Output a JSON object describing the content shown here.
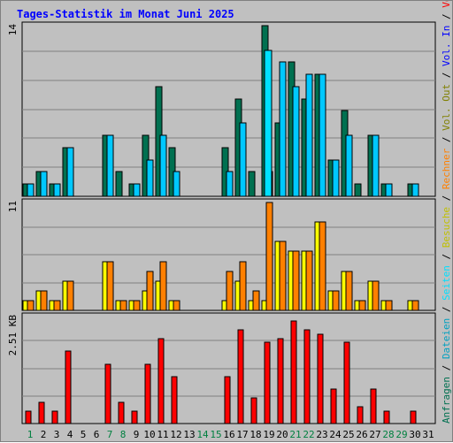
{
  "title": "Tages-Statistik im Monat Juni 2025",
  "chart_data": {
    "type": "bar",
    "days": [
      "1",
      "2",
      "3",
      "4",
      "5",
      "6",
      "7",
      "8",
      "9",
      "10",
      "11",
      "12",
      "13",
      "14",
      "15",
      "16",
      "17",
      "18",
      "19",
      "20",
      "21",
      "22",
      "23",
      "24",
      "25",
      "26",
      "27",
      "28",
      "29",
      "30",
      "31"
    ],
    "weekend_days": [
      "1",
      "7",
      "8",
      "14",
      "15",
      "21",
      "22",
      "28",
      "29"
    ],
    "panels": [
      {
        "id": "top",
        "ymax_label": "14",
        "ymax": 14,
        "series": [
          {
            "name": "Anfragen",
            "color": "#007050",
            "values": [
              1,
              2,
              1,
              4,
              0,
              0,
              5,
              2,
              1,
              5,
              9,
              4,
              0,
              0,
              0,
              4,
              8,
              2,
              14,
              6,
              11,
              8,
              10,
              3,
              7,
              1,
              5,
              1,
              0,
              1,
              0
            ]
          },
          {
            "name": "Dateien",
            "color": "#00c8ff",
            "values": [
              1,
              2,
              1,
              4,
              0,
              0,
              5,
              0,
              1,
              3,
              5,
              2,
              0,
              0,
              0,
              2,
              6,
              0,
              2,
              11,
              9,
              10,
              10,
              3,
              5,
              0,
              5,
              1,
              0,
              1,
              0
            ]
          },
          {
            "name": "Seiten",
            "color": "#00e0ff",
            "values": [
              0,
              0,
              0,
              0,
              0,
              0,
              0,
              0,
              0,
              0,
              0,
              0,
              0,
              0,
              0,
              0,
              0,
              0,
              12,
              0,
              0,
              0,
              0,
              0,
              0,
              0,
              0,
              0,
              0,
              0,
              0
            ]
          }
        ]
      },
      {
        "id": "middle",
        "ymax_label": "11",
        "ymax": 11,
        "series": [
          {
            "name": "Besuche",
            "color": "#ffff00",
            "values": [
              1,
              2,
              1,
              3,
              0,
              0,
              5,
              1,
              1,
              2,
              3,
              1,
              0,
              0,
              0,
              1,
              3,
              1,
              1,
              7,
              6,
              6,
              9,
              2,
              4,
              1,
              3,
              1,
              0,
              1,
              0
            ]
          },
          {
            "name": "Rechner",
            "color": "#ff8000",
            "values": [
              1,
              2,
              1,
              3,
              0,
              0,
              5,
              1,
              1,
              4,
              5,
              1,
              0,
              0,
              0,
              4,
              5,
              2,
              11,
              7,
              6,
              6,
              9,
              2,
              4,
              1,
              3,
              1,
              0,
              1,
              0
            ]
          }
        ]
      },
      {
        "id": "bottom",
        "ymax_label": "2.51 KB",
        "ymax": 2.51,
        "series": [
          {
            "name": "Volumen",
            "color": "#ff0000",
            "values": [
              0.3,
              0.5,
              0.3,
              1.7,
              0,
              0,
              1.4,
              0.5,
              0.3,
              1.4,
              2.0,
              1.1,
              0,
              0,
              0,
              1.1,
              2.2,
              0.6,
              1.9,
              2.0,
              2.4,
              2.2,
              2.1,
              0.8,
              1.9,
              0.4,
              0.8,
              0.3,
              0,
              0.3,
              0
            ]
          }
        ]
      }
    ],
    "legend_right": [
      {
        "text": "Anfragen",
        "color": "#007050"
      },
      {
        "text": "/",
        "color": "#000000"
      },
      {
        "text": "Dateien",
        "color": "#00a0c0"
      },
      {
        "text": "/",
        "color": "#000000"
      },
      {
        "text": "Seiten",
        "color": "#00e0ff"
      },
      {
        "text": "/",
        "color": "#000000"
      },
      {
        "text": "Besuche",
        "color": "#c0c000"
      },
      {
        "text": "/",
        "color": "#000000"
      },
      {
        "text": "Rechner",
        "color": "#ff8000"
      },
      {
        "text": "/",
        "color": "#000000"
      },
      {
        "text": "Vol. Out",
        "color": "#808000"
      },
      {
        "text": "/",
        "color": "#000000"
      },
      {
        "text": "Vol. In",
        "color": "#0000ff"
      },
      {
        "text": "/",
        "color": "#000000"
      },
      {
        "text": "Volumen",
        "color": "#ff0000"
      }
    ]
  }
}
